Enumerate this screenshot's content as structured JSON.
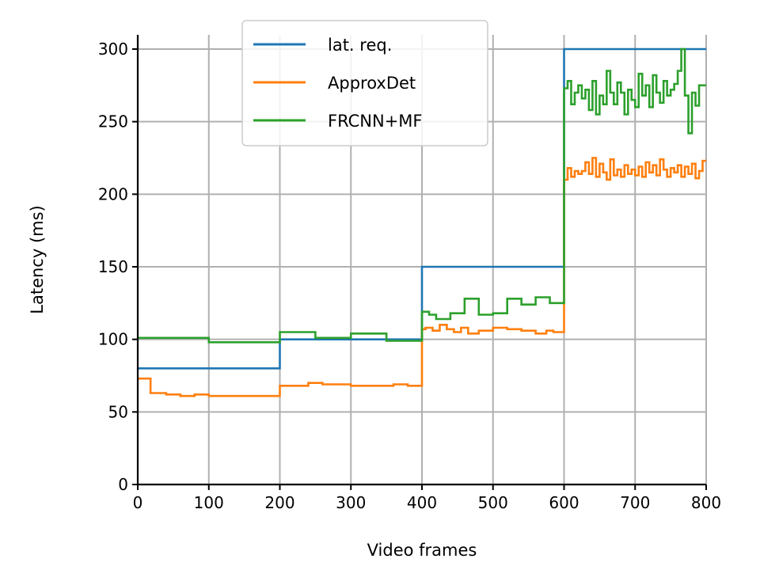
{
  "chart_data": {
    "type": "line",
    "title": "",
    "xlabel": "Video frames",
    "ylabel": "Latency (ms)",
    "xlim": [
      0,
      800
    ],
    "ylim": [
      0,
      300
    ],
    "xticks": [
      0,
      100,
      200,
      300,
      400,
      500,
      600,
      700,
      800
    ],
    "yticks": [
      0,
      50,
      100,
      150,
      200,
      250,
      300
    ],
    "grid": true,
    "legend_position": "top-center",
    "series": [
      {
        "name": "lat. req.",
        "color": "#1f77b4",
        "step": true,
        "x": [
          0,
          200,
          400,
          600,
          800
        ],
        "y": [
          80,
          100,
          150,
          300,
          300
        ]
      },
      {
        "name": "ApproxDet",
        "color": "#ff7f0e",
        "step": true,
        "x": [
          0,
          18,
          40,
          60,
          80,
          100,
          140,
          180,
          200,
          220,
          240,
          260,
          300,
          340,
          360,
          380,
          400,
          405,
          415,
          425,
          435,
          445,
          455,
          465,
          480,
          500,
          520,
          540,
          560,
          575,
          585,
          600,
          605,
          610,
          615,
          620,
          625,
          630,
          635,
          640,
          645,
          650,
          655,
          660,
          665,
          670,
          675,
          680,
          685,
          690,
          695,
          700,
          705,
          710,
          715,
          720,
          725,
          730,
          735,
          740,
          745,
          750,
          755,
          760,
          765,
          770,
          775,
          780,
          785,
          790,
          795,
          800
        ],
        "y": [
          73,
          63,
          62,
          61,
          62,
          61,
          61,
          61,
          68,
          68,
          70,
          69,
          68,
          68,
          69,
          68,
          107,
          108,
          106,
          110,
          107,
          105,
          108,
          104,
          106,
          108,
          107,
          106,
          104,
          106,
          105,
          210,
          218,
          212,
          216,
          214,
          216,
          222,
          214,
          225,
          212,
          221,
          215,
          210,
          224,
          213,
          217,
          212,
          220,
          214,
          217,
          213,
          219,
          212,
          222,
          215,
          220,
          213,
          224,
          217,
          212,
          218,
          215,
          220,
          212,
          219,
          214,
          221,
          211,
          216,
          223,
          223
        ]
      },
      {
        "name": "FRCNN+MF",
        "color": "#2ca02c",
        "step": true,
        "x": [
          0,
          100,
          200,
          250,
          300,
          350,
          400,
          410,
          420,
          440,
          460,
          480,
          500,
          520,
          540,
          560,
          580,
          600,
          605,
          610,
          615,
          620,
          625,
          630,
          635,
          640,
          645,
          650,
          655,
          660,
          665,
          670,
          675,
          680,
          685,
          690,
          695,
          700,
          705,
          710,
          715,
          720,
          725,
          730,
          735,
          740,
          745,
          750,
          755,
          760,
          765,
          770,
          775,
          780,
          785,
          790,
          795,
          800
        ],
        "y": [
          101,
          98,
          105,
          101,
          104,
          99,
          119,
          117,
          114,
          118,
          128,
          117,
          118,
          128,
          124,
          129,
          125,
          273,
          278,
          262,
          270,
          275,
          266,
          272,
          258,
          278,
          255,
          268,
          262,
          285,
          270,
          262,
          277,
          270,
          255,
          272,
          265,
          260,
          283,
          268,
          275,
          260,
          282,
          270,
          263,
          278,
          268,
          272,
          276,
          285,
          300,
          268,
          242,
          270,
          261,
          275,
          275,
          275
        ]
      }
    ]
  }
}
